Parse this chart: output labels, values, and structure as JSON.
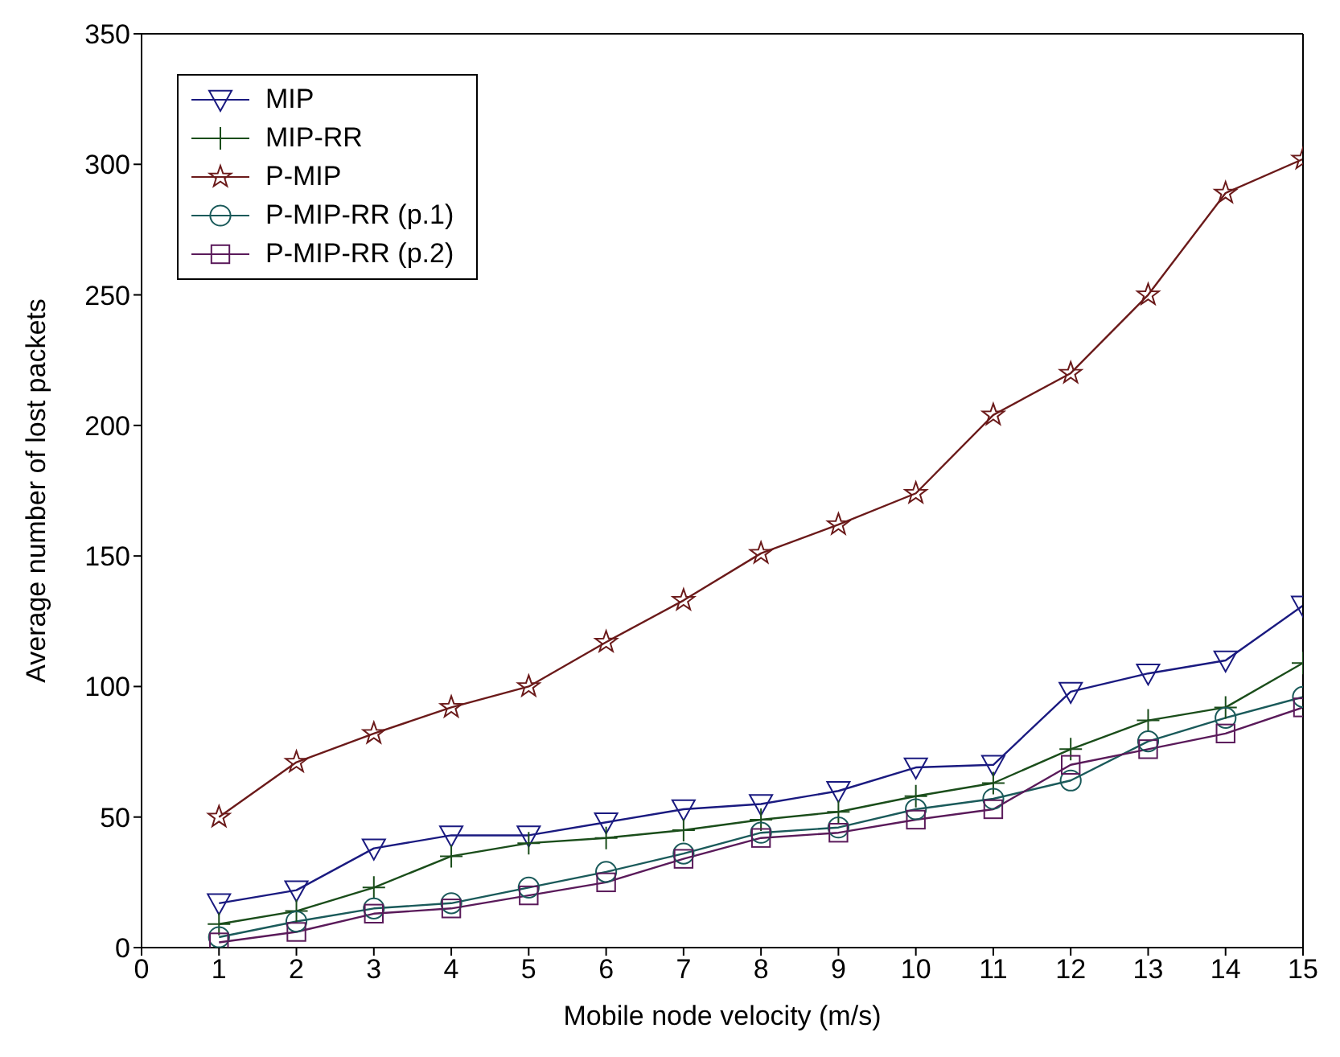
{
  "chart_data": {
    "type": "line",
    "xlabel": "Mobile node velocity (m/s)",
    "ylabel": "Average number of lost packets",
    "x": [
      1,
      2,
      3,
      4,
      5,
      6,
      7,
      8,
      9,
      10,
      11,
      12,
      13,
      14,
      15
    ],
    "xlim": [
      0,
      15
    ],
    "xticks": [
      0,
      1,
      2,
      3,
      4,
      5,
      6,
      7,
      8,
      9,
      10,
      11,
      12,
      13,
      14,
      15
    ],
    "ylim": [
      0,
      350
    ],
    "yticks": [
      0,
      50,
      100,
      150,
      200,
      250,
      300,
      350
    ],
    "grid": false,
    "legend": "top left",
    "series": [
      {
        "name": "MIP",
        "color": "#1a1a80",
        "marker": "triangle",
        "values": [
          17,
          22,
          38,
          43,
          43,
          48,
          53,
          55,
          60,
          69,
          70,
          98,
          105,
          110,
          131
        ]
      },
      {
        "name": "MIP-RR",
        "color": "#1a4d1a",
        "marker": "cross",
        "values": [
          9,
          14,
          23,
          35,
          40,
          42,
          45,
          49,
          52,
          58,
          63,
          76,
          87,
          92,
          109
        ]
      },
      {
        "name": "P-MIP",
        "color": "#6b1a1a",
        "marker": "star",
        "values": [
          50,
          71,
          82,
          92,
          100,
          117,
          133,
          151,
          162,
          174,
          204,
          220,
          250,
          289,
          302
        ]
      },
      {
        "name": "P-MIP-RR (p.1)",
        "color": "#1a5a5a",
        "marker": "circle",
        "values": [
          4,
          10,
          15,
          17,
          23,
          29,
          36,
          44,
          46,
          53,
          57,
          64,
          79,
          88,
          96
        ]
      },
      {
        "name": "P-MIP-RR (p.2)",
        "color": "#5a1a5a",
        "marker": "square",
        "values": [
          2,
          6,
          13,
          15,
          20,
          25,
          34,
          42,
          44,
          49,
          53,
          70,
          76,
          82,
          92
        ]
      }
    ]
  }
}
